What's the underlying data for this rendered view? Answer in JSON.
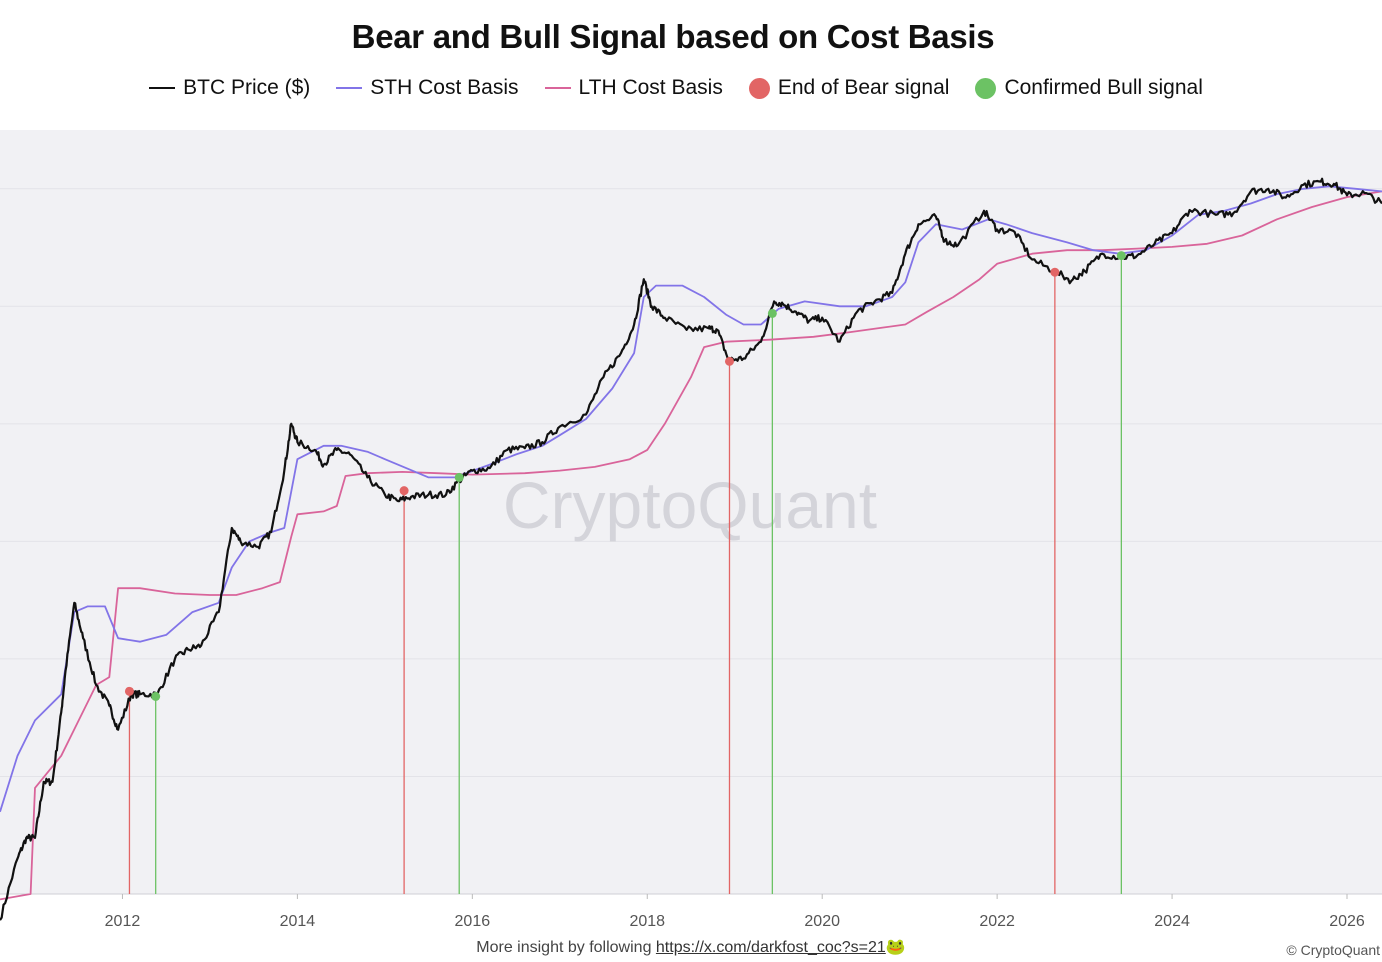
{
  "chart_data": {
    "type": "line",
    "title": "Bear and Bull Signal based on Cost Basis",
    "xlabel": "",
    "ylabel": "",
    "y_scale": "log",
    "xlim": [
      2010.6,
      2026.4
    ],
    "ylim_log10": [
      -1.0,
      5.5
    ],
    "grid": true,
    "legend_placement": "top",
    "x_ticks": [
      "2012",
      "2014",
      "2016",
      "2018",
      "2020",
      "2022",
      "2024",
      "2026"
    ],
    "series": [
      {
        "name": "BTC Price ($)",
        "color": "#111111",
        "points": [
          [
            2010.6,
            0.06
          ],
          [
            2010.8,
            0.2
          ],
          [
            2010.9,
            0.3
          ],
          [
            2011.0,
            0.3
          ],
          [
            2011.1,
            0.9
          ],
          [
            2011.2,
            0.9
          ],
          [
            2011.3,
            3.5
          ],
          [
            2011.35,
            8
          ],
          [
            2011.45,
            30
          ],
          [
            2011.55,
            15
          ],
          [
            2011.7,
            6
          ],
          [
            2011.85,
            4
          ],
          [
            2011.95,
            2.5
          ],
          [
            2012.1,
            5
          ],
          [
            2012.2,
            5
          ],
          [
            2012.4,
            5
          ],
          [
            2012.6,
            10
          ],
          [
            2012.75,
            12
          ],
          [
            2012.9,
            13
          ],
          [
            2013.1,
            25
          ],
          [
            2013.25,
            130
          ],
          [
            2013.35,
            100
          ],
          [
            2013.55,
            90
          ],
          [
            2013.7,
            120
          ],
          [
            2013.85,
            400
          ],
          [
            2013.93,
            1000
          ],
          [
            2014.0,
            700
          ],
          [
            2014.2,
            600
          ],
          [
            2014.3,
            450
          ],
          [
            2014.45,
            600
          ],
          [
            2014.6,
            550
          ],
          [
            2014.8,
            350
          ],
          [
            2015.0,
            250
          ],
          [
            2015.15,
            220
          ],
          [
            2015.3,
            240
          ],
          [
            2015.5,
            250
          ],
          [
            2015.7,
            250
          ],
          [
            2015.85,
            330
          ],
          [
            2016.0,
            400
          ],
          [
            2016.2,
            420
          ],
          [
            2016.4,
            600
          ],
          [
            2016.6,
            620
          ],
          [
            2016.8,
            700
          ],
          [
            2017.0,
            950
          ],
          [
            2017.3,
            1200
          ],
          [
            2017.5,
            2500
          ],
          [
            2017.7,
            4000
          ],
          [
            2017.85,
            7000
          ],
          [
            2017.96,
            17000
          ],
          [
            2018.05,
            10000
          ],
          [
            2018.2,
            8000
          ],
          [
            2018.45,
            6300
          ],
          [
            2018.7,
            6500
          ],
          [
            2018.8,
            6300
          ],
          [
            2018.93,
            3500
          ],
          [
            2019.1,
            3600
          ],
          [
            2019.3,
            5000
          ],
          [
            2019.45,
            11000
          ],
          [
            2019.55,
            10500
          ],
          [
            2019.7,
            9000
          ],
          [
            2019.85,
            7500
          ],
          [
            2020.0,
            8000
          ],
          [
            2020.2,
            5000
          ],
          [
            2020.4,
            9000
          ],
          [
            2020.6,
            11000
          ],
          [
            2020.8,
            13000
          ],
          [
            2020.95,
            28000
          ],
          [
            2021.1,
            50000
          ],
          [
            2021.3,
            58000
          ],
          [
            2021.4,
            36000
          ],
          [
            2021.55,
            33000
          ],
          [
            2021.85,
            65000
          ],
          [
            2022.0,
            45000
          ],
          [
            2022.2,
            43000
          ],
          [
            2022.4,
            25000
          ],
          [
            2022.65,
            20000
          ],
          [
            2022.85,
            16500
          ],
          [
            2023.0,
            20000
          ],
          [
            2023.2,
            28000
          ],
          [
            2023.42,
            26000
          ],
          [
            2023.6,
            27000
          ],
          [
            2023.8,
            34000
          ],
          [
            2024.0,
            42000
          ],
          [
            2024.2,
            66000
          ],
          [
            2024.5,
            60000
          ],
          [
            2024.7,
            62000
          ],
          [
            2024.9,
            95000
          ],
          [
            2025.1,
            100000
          ],
          [
            2025.3,
            84000
          ],
          [
            2025.5,
            108000
          ],
          [
            2025.7,
            115000
          ],
          [
            2025.85,
            110000
          ],
          [
            2026.0,
            88000
          ],
          [
            2026.2,
            92000
          ],
          [
            2026.4,
            75000
          ]
        ]
      },
      {
        "name": "STH Cost Basis",
        "color": "#8274e8",
        "points": [
          [
            2010.6,
            0.5
          ],
          [
            2010.8,
            1.5
          ],
          [
            2011.0,
            3
          ],
          [
            2011.3,
            5
          ],
          [
            2011.45,
            25
          ],
          [
            2011.6,
            28
          ],
          [
            2011.8,
            28
          ],
          [
            2011.95,
            15
          ],
          [
            2012.2,
            14
          ],
          [
            2012.5,
            16
          ],
          [
            2012.8,
            25
          ],
          [
            2013.1,
            30
          ],
          [
            2013.25,
            60
          ],
          [
            2013.45,
            100
          ],
          [
            2013.7,
            120
          ],
          [
            2013.85,
            130
          ],
          [
            2014.0,
            500
          ],
          [
            2014.3,
            650
          ],
          [
            2014.5,
            650
          ],
          [
            2014.8,
            580
          ],
          [
            2015.0,
            500
          ],
          [
            2015.5,
            350
          ],
          [
            2015.8,
            350
          ],
          [
            2016.2,
            450
          ],
          [
            2016.5,
            550
          ],
          [
            2016.8,
            650
          ],
          [
            2017.0,
            800
          ],
          [
            2017.3,
            1100
          ],
          [
            2017.6,
            2000
          ],
          [
            2017.85,
            4000
          ],
          [
            2017.96,
            12000
          ],
          [
            2018.1,
            15000
          ],
          [
            2018.4,
            15000
          ],
          [
            2018.65,
            12000
          ],
          [
            2018.9,
            8500
          ],
          [
            2019.1,
            7000
          ],
          [
            2019.3,
            7000
          ],
          [
            2019.5,
            9500
          ],
          [
            2019.8,
            11000
          ],
          [
            2020.2,
            10000
          ],
          [
            2020.5,
            10000
          ],
          [
            2020.8,
            12000
          ],
          [
            2020.95,
            16000
          ],
          [
            2021.1,
            35000
          ],
          [
            2021.3,
            50000
          ],
          [
            2021.6,
            45000
          ],
          [
            2021.9,
            55000
          ],
          [
            2022.1,
            50000
          ],
          [
            2022.4,
            42000
          ],
          [
            2022.8,
            35000
          ],
          [
            2023.1,
            30000
          ],
          [
            2023.4,
            28000
          ],
          [
            2023.7,
            30000
          ],
          [
            2024.0,
            40000
          ],
          [
            2024.3,
            60000
          ],
          [
            2024.6,
            65000
          ],
          [
            2024.9,
            75000
          ],
          [
            2025.2,
            90000
          ],
          [
            2025.5,
            100000
          ],
          [
            2025.8,
            105000
          ],
          [
            2026.1,
            100000
          ],
          [
            2026.4,
            95000
          ]
        ]
      },
      {
        "name": "LTH Cost Basis",
        "color": "#d9649a",
        "points": [
          [
            2010.6,
            0.09
          ],
          [
            2010.95,
            0.1
          ],
          [
            2011.0,
            0.8
          ],
          [
            2011.3,
            1.5
          ],
          [
            2011.5,
            3
          ],
          [
            2011.7,
            6
          ],
          [
            2011.85,
            7
          ],
          [
            2011.95,
            40
          ],
          [
            2012.2,
            40
          ],
          [
            2012.6,
            36
          ],
          [
            2013.0,
            35
          ],
          [
            2013.3,
            35
          ],
          [
            2013.6,
            40
          ],
          [
            2013.8,
            45
          ],
          [
            2013.93,
            110
          ],
          [
            2014.0,
            170
          ],
          [
            2014.3,
            180
          ],
          [
            2014.45,
            200
          ],
          [
            2014.55,
            360
          ],
          [
            2014.8,
            380
          ],
          [
            2015.2,
            390
          ],
          [
            2015.6,
            380
          ],
          [
            2016.0,
            370
          ],
          [
            2016.6,
            380
          ],
          [
            2017.0,
            400
          ],
          [
            2017.4,
            430
          ],
          [
            2017.8,
            500
          ],
          [
            2018.0,
            600
          ],
          [
            2018.2,
            1000
          ],
          [
            2018.5,
            2500
          ],
          [
            2018.65,
            4500
          ],
          [
            2018.9,
            5000
          ],
          [
            2019.4,
            5200
          ],
          [
            2019.9,
            5500
          ],
          [
            2020.3,
            6000
          ],
          [
            2020.7,
            6600
          ],
          [
            2020.95,
            7000
          ],
          [
            2021.2,
            9000
          ],
          [
            2021.5,
            12000
          ],
          [
            2021.8,
            17000
          ],
          [
            2022.0,
            23000
          ],
          [
            2022.4,
            28000
          ],
          [
            2022.8,
            30000
          ],
          [
            2023.2,
            30000
          ],
          [
            2023.6,
            31000
          ],
          [
            2024.0,
            32000
          ],
          [
            2024.4,
            34000
          ],
          [
            2024.8,
            40000
          ],
          [
            2025.2,
            55000
          ],
          [
            2025.6,
            70000
          ],
          [
            2026.0,
            85000
          ],
          [
            2026.4,
            95000
          ]
        ]
      }
    ],
    "signals": {
      "end_of_bear": {
        "name": "End of Bear signal",
        "color": "#e26565",
        "points": [
          [
            2012.08,
            5.3
          ],
          [
            2015.22,
            270
          ],
          [
            2018.94,
            3400
          ],
          [
            2022.66,
            19500
          ]
        ]
      },
      "confirmed_bull": {
        "name": "Confirmed Bull signal",
        "color": "#6cc264",
        "points": [
          [
            2012.38,
            4.8
          ],
          [
            2015.85,
            350
          ],
          [
            2019.43,
            8700
          ],
          [
            2023.42,
            27000
          ]
        ]
      }
    }
  },
  "colors": {
    "plot_background": "#f1f1f4",
    "gridline": "#e3e3e8",
    "watermark": "#d4d4da"
  },
  "watermark": "CryptoQuant",
  "footer": {
    "text": "More insight by following ",
    "link": "https://x.com/darkfost_coc?s=21",
    "emoji": "🐸",
    "copyright": "© CryptoQuant"
  }
}
